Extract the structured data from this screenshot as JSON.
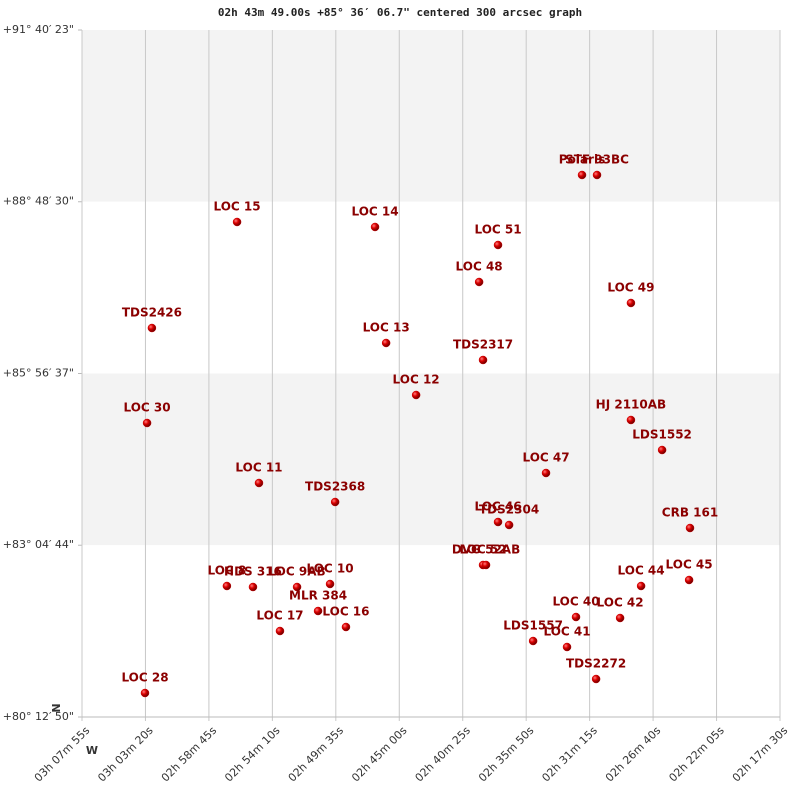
{
  "chart_data": {
    "type": "scatter",
    "title": "02h 43m 49.00s +85° 36′ 06.7\" centered 300 arcsec graph",
    "x_axis_label": "W",
    "y_axis_label": "N",
    "color": "#cc0000",
    "label_color": "#8b0000",
    "grid": true,
    "xlim": [
      11275,
      8250
    ],
    "xticks": [
      {
        "value": 11275,
        "label": "03h 07m 55s"
      },
      {
        "value": 11000,
        "label": "03h 03m 20s"
      },
      {
        "value": 10725,
        "label": "02h 58m 45s"
      },
      {
        "value": 10450,
        "label": "02h 54m 10s"
      },
      {
        "value": 10175,
        "label": "02h 49m 35s"
      },
      {
        "value": 9900,
        "label": "02h 45m 00s"
      },
      {
        "value": 9625,
        "label": "02h 40m 25s"
      },
      {
        "value": 9350,
        "label": "02h 35m 50s"
      },
      {
        "value": 9075,
        "label": "02h 31m 15s"
      },
      {
        "value": 8800,
        "label": "02h 26m 40s"
      },
      {
        "value": 8525,
        "label": "02h 22m 05s"
      },
      {
        "value": 8250,
        "label": "02h 17m 30s"
      }
    ],
    "ylim": [
      288770,
      330023
    ],
    "yticks": [
      {
        "value": 288770,
        "label": "+80° 12′ 50\""
      },
      {
        "value": 299084,
        "label": "+83° 04′ 44\""
      },
      {
        "value": 309397,
        "label": "+85° 56′ 37\""
      },
      {
        "value": 319710,
        "label": "+88° 48′ 30\""
      },
      {
        "value": 330023,
        "label": "+91° 40′ 23\""
      }
    ],
    "labels": [
      "Polaris",
      "STF 93BC",
      "LOC 15",
      "LOC 14",
      "LOC 51",
      "LOC 48",
      "LOC 49",
      "TDS2426",
      "LOC 13",
      "TDS2317",
      "LOC 12",
      "LOC 30",
      "HJ 2110AB",
      "LDS1552",
      "LOC 47",
      "LOC 11",
      "TDS2368",
      "LOC 46",
      "TDS2304",
      "CRB 161",
      "LOC 52",
      "DVG 52AB",
      "LOC 8",
      "HDS 316",
      "LOC 9AB",
      "LOC 10",
      "LOC 44",
      "LOC 45",
      "MLR 384",
      "LOC 16",
      "LOC 17",
      "LOC 40",
      "LOC 42",
      "LDS1557",
      "LOC 41",
      "TDS2272",
      "LOC 28"
    ],
    "x": [
      9108,
      9043,
      10603,
      10005,
      9472,
      9554,
      8896,
      10972,
      9957,
      9537,
      9827,
      10993,
      8896,
      8761,
      9264,
      10508,
      10178,
      9472,
      9424,
      8640,
      9537,
      9524,
      10647,
      10534,
      10343,
      10200,
      8852,
      8644,
      10252,
      10131,
      10417,
      9134,
      8943,
      9320,
      9173,
      9047,
      11002
    ],
    "values": [
      321317,
      321317,
      318495,
      318195,
      317114,
      314892,
      313631,
      312129,
      311229,
      310208,
      308106,
      306425,
      306605,
      304803,
      303422,
      302822,
      301681,
      300480,
      300300,
      300119,
      297898,
      297898,
      296637,
      296577,
      296577,
      296757,
      296637,
      296997,
      295135,
      294175,
      293934,
      294775,
      294715,
      293334,
      292974,
      291052,
      290211
    ]
  }
}
